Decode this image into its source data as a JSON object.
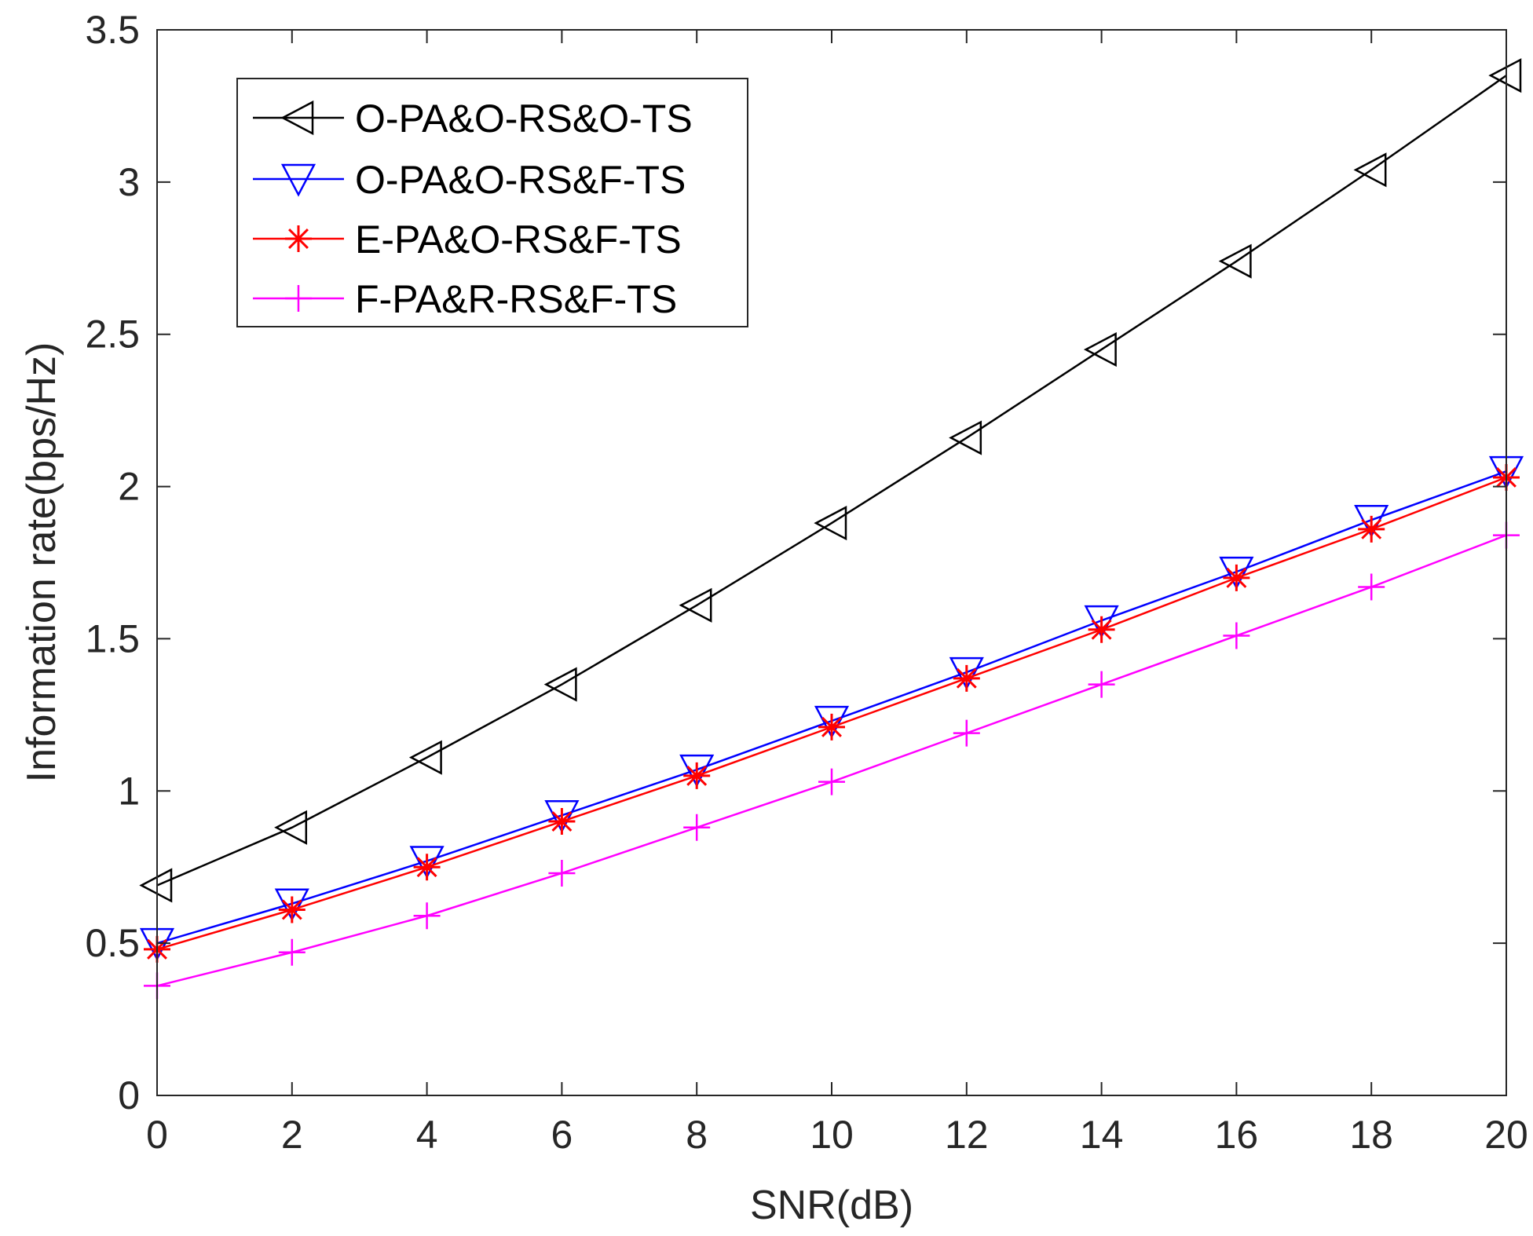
{
  "chart_data": {
    "type": "line",
    "title": "",
    "xlabel": "SNR(dB)",
    "ylabel": "Information rate(bps/Hz)",
    "xlim": [
      0,
      20
    ],
    "ylim": [
      0,
      3.5
    ],
    "xticks": [
      0,
      2,
      4,
      6,
      8,
      10,
      12,
      14,
      16,
      18,
      20
    ],
    "yticks": [
      0,
      0.5,
      1,
      1.5,
      2,
      2.5,
      3,
      3.5
    ],
    "xtick_labels": [
      "0",
      "2",
      "4",
      "6",
      "8",
      "10",
      "12",
      "14",
      "16",
      "18",
      "20"
    ],
    "ytick_labels": [
      "0",
      "0.5",
      "1",
      "1.5",
      "2",
      "2.5",
      "3",
      "3.5"
    ],
    "grid": false,
    "legend_position": "top-left",
    "x": [
      0,
      2,
      4,
      6,
      8,
      10,
      12,
      14,
      16,
      18,
      20
    ],
    "series": [
      {
        "name": "O-PA&O-RS&O-TS",
        "color": "#000000",
        "marker": "triangle-left",
        "values": [
          0.69,
          0.88,
          1.11,
          1.35,
          1.61,
          1.88,
          2.16,
          2.45,
          2.74,
          3.04,
          3.35
        ]
      },
      {
        "name": "O-PA&O-RS&F-TS",
        "color": "#0000ff",
        "marker": "triangle-down",
        "values": [
          0.5,
          0.63,
          0.77,
          0.92,
          1.07,
          1.23,
          1.39,
          1.56,
          1.72,
          1.89,
          2.05
        ]
      },
      {
        "name": "E-PA&O-RS&F-TS",
        "color": "#ff0000",
        "marker": "asterisk",
        "values": [
          0.48,
          0.61,
          0.75,
          0.9,
          1.05,
          1.21,
          1.37,
          1.53,
          1.7,
          1.86,
          2.03
        ]
      },
      {
        "name": "F-PA&R-RS&F-TS",
        "color": "#ff00ff",
        "marker": "plus",
        "values": [
          0.36,
          0.47,
          0.59,
          0.73,
          0.88,
          1.03,
          1.19,
          1.35,
          1.51,
          1.67,
          1.84
        ]
      }
    ]
  }
}
